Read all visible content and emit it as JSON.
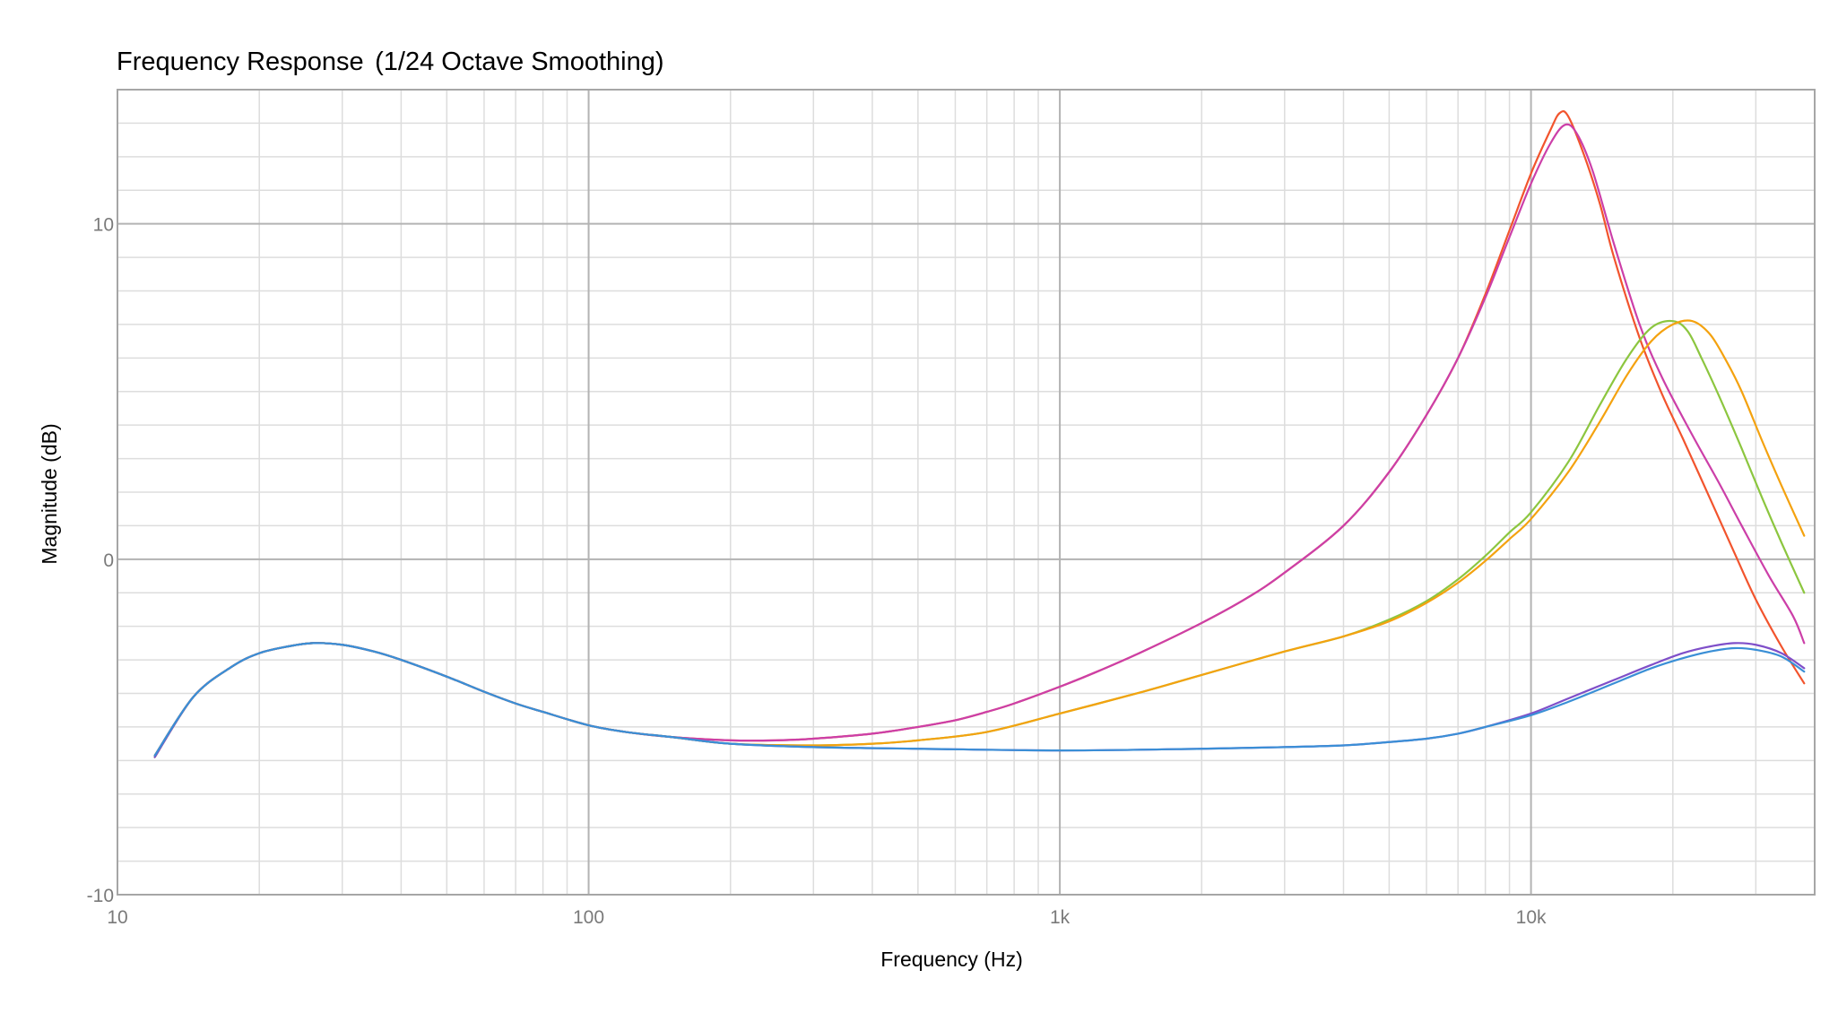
{
  "chart_data": {
    "type": "line",
    "title": "Frequency Response",
    "subtitle": "(1/24 Octave Smoothing)",
    "xlabel": "Frequency (Hz)",
    "ylabel": "Magnitude (dB)",
    "x_scale": "log",
    "xlim": [
      10,
      40000
    ],
    "ylim": [
      -10,
      14
    ],
    "x_ticks": [
      {
        "value": 10,
        "label": "10"
      },
      {
        "value": 100,
        "label": "100"
      },
      {
        "value": 1000,
        "label": "1k"
      },
      {
        "value": 10000,
        "label": "10k"
      }
    ],
    "y_ticks": [
      {
        "value": -10,
        "label": "-10"
      },
      {
        "value": 0,
        "label": "0"
      },
      {
        "value": 10,
        "label": "10"
      }
    ],
    "grid": true,
    "legend": "none",
    "series": [
      {
        "color": "#f2542d",
        "points": [
          [
            12,
            -5.9
          ],
          [
            14.5,
            -4.1
          ],
          [
            17.5,
            -3.2
          ],
          [
            20,
            -2.8
          ],
          [
            23,
            -2.6
          ],
          [
            26,
            -2.5
          ],
          [
            30,
            -2.55
          ],
          [
            35,
            -2.75
          ],
          [
            40,
            -3.0
          ],
          [
            50,
            -3.5
          ],
          [
            60,
            -3.95
          ],
          [
            70,
            -4.3
          ],
          [
            80,
            -4.55
          ],
          [
            100,
            -4.95
          ],
          [
            120,
            -5.15
          ],
          [
            150,
            -5.3
          ],
          [
            200,
            -5.4
          ],
          [
            250,
            -5.4
          ],
          [
            300,
            -5.35
          ],
          [
            400,
            -5.2
          ],
          [
            500,
            -5.0
          ],
          [
            600,
            -4.8
          ],
          [
            700,
            -4.55
          ],
          [
            800,
            -4.3
          ],
          [
            1000,
            -3.8
          ],
          [
            1200,
            -3.35
          ],
          [
            1500,
            -2.75
          ],
          [
            2000,
            -1.9
          ],
          [
            2500,
            -1.15
          ],
          [
            3000,
            -0.4
          ],
          [
            4000,
            1.0
          ],
          [
            5000,
            2.6
          ],
          [
            6000,
            4.3
          ],
          [
            7000,
            6.0
          ],
          [
            8000,
            7.9
          ],
          [
            9000,
            9.8
          ],
          [
            10000,
            11.5
          ],
          [
            11000,
            12.8
          ],
          [
            11500,
            13.3
          ],
          [
            12000,
            13.2
          ],
          [
            13000,
            12.0
          ],
          [
            14000,
            10.6
          ],
          [
            15000,
            9.0
          ],
          [
            17000,
            6.6
          ],
          [
            19000,
            4.9
          ],
          [
            21000,
            3.6
          ],
          [
            24000,
            1.8
          ],
          [
            27000,
            0.2
          ],
          [
            30000,
            -1.2
          ],
          [
            34000,
            -2.6
          ],
          [
            38000,
            -3.7
          ]
        ]
      },
      {
        "color": "#cc3fa8",
        "points": [
          [
            12,
            -5.85
          ],
          [
            14.5,
            -4.1
          ],
          [
            17.5,
            -3.2
          ],
          [
            20,
            -2.8
          ],
          [
            23,
            -2.6
          ],
          [
            26,
            -2.5
          ],
          [
            30,
            -2.55
          ],
          [
            35,
            -2.75
          ],
          [
            40,
            -3.0
          ],
          [
            50,
            -3.5
          ],
          [
            60,
            -3.95
          ],
          [
            70,
            -4.3
          ],
          [
            80,
            -4.55
          ],
          [
            100,
            -4.95
          ],
          [
            120,
            -5.15
          ],
          [
            150,
            -5.3
          ],
          [
            200,
            -5.4
          ],
          [
            250,
            -5.4
          ],
          [
            300,
            -5.35
          ],
          [
            400,
            -5.2
          ],
          [
            500,
            -5.0
          ],
          [
            600,
            -4.8
          ],
          [
            700,
            -4.55
          ],
          [
            800,
            -4.3
          ],
          [
            1000,
            -3.8
          ],
          [
            1200,
            -3.35
          ],
          [
            1500,
            -2.75
          ],
          [
            2000,
            -1.9
          ],
          [
            2500,
            -1.15
          ],
          [
            3000,
            -0.4
          ],
          [
            4000,
            1.0
          ],
          [
            5000,
            2.6
          ],
          [
            6000,
            4.3
          ],
          [
            7000,
            6.0
          ],
          [
            8000,
            7.8
          ],
          [
            9000,
            9.6
          ],
          [
            10000,
            11.2
          ],
          [
            11000,
            12.4
          ],
          [
            11800,
            12.95
          ],
          [
            12500,
            12.7
          ],
          [
            13500,
            11.6
          ],
          [
            15000,
            9.4
          ],
          [
            17000,
            7.0
          ],
          [
            19000,
            5.4
          ],
          [
            22000,
            3.7
          ],
          [
            25000,
            2.3
          ],
          [
            28000,
            1.0
          ],
          [
            32000,
            -0.5
          ],
          [
            36000,
            -1.7
          ],
          [
            38000,
            -2.5
          ]
        ]
      },
      {
        "color": "#8cc63f",
        "points": [
          [
            12,
            -5.9
          ],
          [
            14.5,
            -4.1
          ],
          [
            17.5,
            -3.2
          ],
          [
            20,
            -2.8
          ],
          [
            23,
            -2.6
          ],
          [
            26,
            -2.5
          ],
          [
            30,
            -2.55
          ],
          [
            35,
            -2.75
          ],
          [
            40,
            -3.0
          ],
          [
            50,
            -3.5
          ],
          [
            60,
            -3.95
          ],
          [
            70,
            -4.3
          ],
          [
            80,
            -4.55
          ],
          [
            100,
            -4.95
          ],
          [
            120,
            -5.15
          ],
          [
            150,
            -5.3
          ],
          [
            200,
            -5.5
          ],
          [
            300,
            -5.55
          ],
          [
            400,
            -5.5
          ],
          [
            500,
            -5.4
          ],
          [
            700,
            -5.15
          ],
          [
            1000,
            -4.6
          ],
          [
            1500,
            -3.95
          ],
          [
            2000,
            -3.45
          ],
          [
            3000,
            -2.75
          ],
          [
            4000,
            -2.3
          ],
          [
            5000,
            -1.8
          ],
          [
            6000,
            -1.25
          ],
          [
            7000,
            -0.6
          ],
          [
            8000,
            0.1
          ],
          [
            9000,
            0.8
          ],
          [
            10000,
            1.4
          ],
          [
            12000,
            2.9
          ],
          [
            14000,
            4.6
          ],
          [
            16000,
            6.0
          ],
          [
            18000,
            6.9
          ],
          [
            20000,
            7.1
          ],
          [
            21500,
            6.8
          ],
          [
            23000,
            6.0
          ],
          [
            25000,
            4.9
          ],
          [
            28000,
            3.3
          ],
          [
            31000,
            1.8
          ],
          [
            34000,
            0.5
          ],
          [
            38000,
            -1.0
          ]
        ]
      },
      {
        "color": "#f4a20f",
        "points": [
          [
            12,
            -5.85
          ],
          [
            14.5,
            -4.1
          ],
          [
            17.5,
            -3.2
          ],
          [
            20,
            -2.8
          ],
          [
            23,
            -2.6
          ],
          [
            26,
            -2.5
          ],
          [
            30,
            -2.55
          ],
          [
            35,
            -2.75
          ],
          [
            40,
            -3.0
          ],
          [
            50,
            -3.5
          ],
          [
            60,
            -3.95
          ],
          [
            70,
            -4.3
          ],
          [
            80,
            -4.55
          ],
          [
            100,
            -4.95
          ],
          [
            120,
            -5.15
          ],
          [
            150,
            -5.3
          ],
          [
            200,
            -5.5
          ],
          [
            300,
            -5.55
          ],
          [
            400,
            -5.5
          ],
          [
            500,
            -5.4
          ],
          [
            700,
            -5.15
          ],
          [
            1000,
            -4.6
          ],
          [
            1500,
            -3.95
          ],
          [
            2000,
            -3.45
          ],
          [
            3000,
            -2.75
          ],
          [
            4000,
            -2.3
          ],
          [
            5000,
            -1.85
          ],
          [
            6000,
            -1.3
          ],
          [
            7000,
            -0.7
          ],
          [
            8000,
            -0.05
          ],
          [
            9000,
            0.6
          ],
          [
            10000,
            1.2
          ],
          [
            12000,
            2.6
          ],
          [
            14000,
            4.1
          ],
          [
            16000,
            5.5
          ],
          [
            18000,
            6.5
          ],
          [
            20000,
            7.0
          ],
          [
            22000,
            7.1
          ],
          [
            24000,
            6.7
          ],
          [
            26000,
            5.9
          ],
          [
            28000,
            5.0
          ],
          [
            31000,
            3.5
          ],
          [
            34000,
            2.2
          ],
          [
            38000,
            0.7
          ]
        ]
      },
      {
        "color": "#7f4fc9",
        "points": [
          [
            12,
            -5.9
          ],
          [
            14.5,
            -4.1
          ],
          [
            17.5,
            -3.2
          ],
          [
            20,
            -2.8
          ],
          [
            23,
            -2.6
          ],
          [
            26,
            -2.5
          ],
          [
            30,
            -2.55
          ],
          [
            35,
            -2.75
          ],
          [
            40,
            -3.0
          ],
          [
            50,
            -3.5
          ],
          [
            60,
            -3.95
          ],
          [
            70,
            -4.3
          ],
          [
            80,
            -4.55
          ],
          [
            100,
            -4.95
          ],
          [
            120,
            -5.15
          ],
          [
            150,
            -5.3
          ],
          [
            200,
            -5.5
          ],
          [
            300,
            -5.6
          ],
          [
            500,
            -5.65
          ],
          [
            1000,
            -5.7
          ],
          [
            2000,
            -5.65
          ],
          [
            3000,
            -5.6
          ],
          [
            4000,
            -5.55
          ],
          [
            5000,
            -5.45
          ],
          [
            6000,
            -5.35
          ],
          [
            7000,
            -5.2
          ],
          [
            8000,
            -5.0
          ],
          [
            10000,
            -4.6
          ],
          [
            12000,
            -4.15
          ],
          [
            15000,
            -3.6
          ],
          [
            18000,
            -3.15
          ],
          [
            21000,
            -2.8
          ],
          [
            24000,
            -2.6
          ],
          [
            27000,
            -2.5
          ],
          [
            30000,
            -2.55
          ],
          [
            34000,
            -2.8
          ],
          [
            38000,
            -3.25
          ]
        ]
      },
      {
        "color": "#3a8fd6",
        "points": [
          [
            12,
            -5.85
          ],
          [
            14.5,
            -4.1
          ],
          [
            17.5,
            -3.2
          ],
          [
            20,
            -2.8
          ],
          [
            23,
            -2.6
          ],
          [
            26,
            -2.5
          ],
          [
            30,
            -2.55
          ],
          [
            35,
            -2.75
          ],
          [
            40,
            -3.0
          ],
          [
            50,
            -3.5
          ],
          [
            60,
            -3.95
          ],
          [
            70,
            -4.3
          ],
          [
            80,
            -4.55
          ],
          [
            100,
            -4.95
          ],
          [
            120,
            -5.15
          ],
          [
            150,
            -5.3
          ],
          [
            200,
            -5.5
          ],
          [
            300,
            -5.6
          ],
          [
            500,
            -5.65
          ],
          [
            1000,
            -5.7
          ],
          [
            2000,
            -5.65
          ],
          [
            3000,
            -5.6
          ],
          [
            4000,
            -5.55
          ],
          [
            5000,
            -5.45
          ],
          [
            6000,
            -5.35
          ],
          [
            7000,
            -5.2
          ],
          [
            8000,
            -5.0
          ],
          [
            10000,
            -4.65
          ],
          [
            12000,
            -4.25
          ],
          [
            15000,
            -3.7
          ],
          [
            18000,
            -3.25
          ],
          [
            21000,
            -2.95
          ],
          [
            24000,
            -2.75
          ],
          [
            27000,
            -2.65
          ],
          [
            30000,
            -2.7
          ],
          [
            34000,
            -2.9
          ],
          [
            38000,
            -3.35
          ]
        ]
      }
    ]
  }
}
